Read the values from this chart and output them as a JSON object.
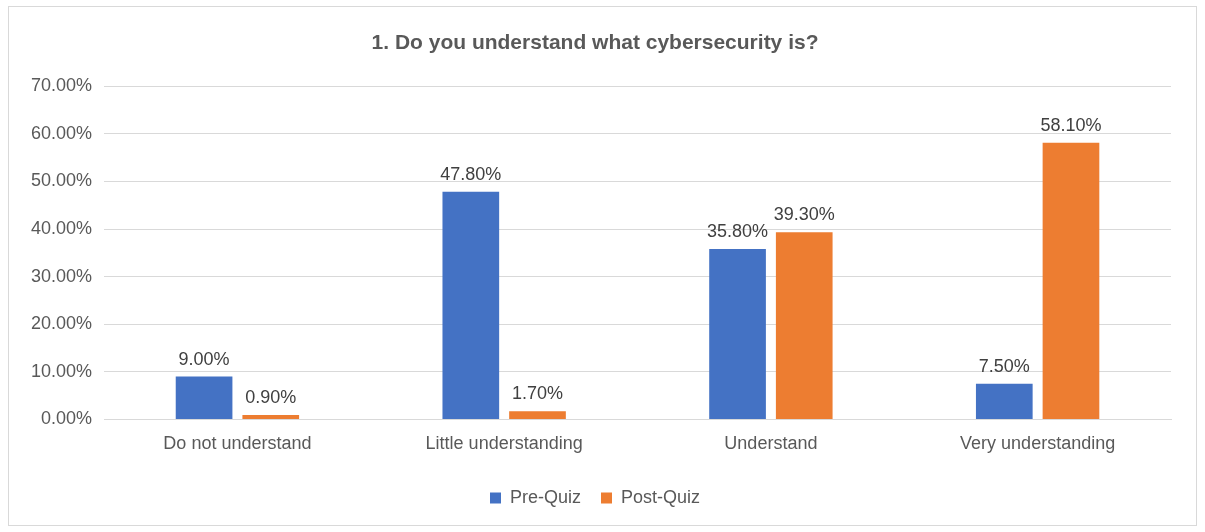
{
  "chart_data": {
    "type": "bar",
    "title": "1. Do you understand what cybersecurity is?",
    "categories": [
      "Do not understand",
      "Little understanding",
      "Understand",
      "Very understanding"
    ],
    "series": [
      {
        "name": "Pre-Quiz",
        "color": "#4472c4",
        "values": [
          9.0,
          47.8,
          35.8,
          7.5
        ],
        "value_labels": [
          "9.00%",
          "47.80%",
          "35.80%",
          "7.50%"
        ]
      },
      {
        "name": "Post-Quiz",
        "color": "#ed7d31",
        "values": [
          0.9,
          1.7,
          39.3,
          58.1
        ],
        "value_labels": [
          "0.90%",
          "1.70%",
          "39.30%",
          "58.10%"
        ]
      }
    ],
    "ylim": [
      0,
      70
    ],
    "yticks": [
      {
        "value": 0,
        "label": "0.00%"
      },
      {
        "value": 10,
        "label": "10.00%"
      },
      {
        "value": 20,
        "label": "20.00%"
      },
      {
        "value": 30,
        "label": "30.00%"
      },
      {
        "value": 40,
        "label": "40.00%"
      },
      {
        "value": 50,
        "label": "50.00%"
      },
      {
        "value": 60,
        "label": "60.00%"
      },
      {
        "value": 70,
        "label": "70.00%"
      }
    ],
    "grid": "y",
    "legend": "bottom"
  }
}
